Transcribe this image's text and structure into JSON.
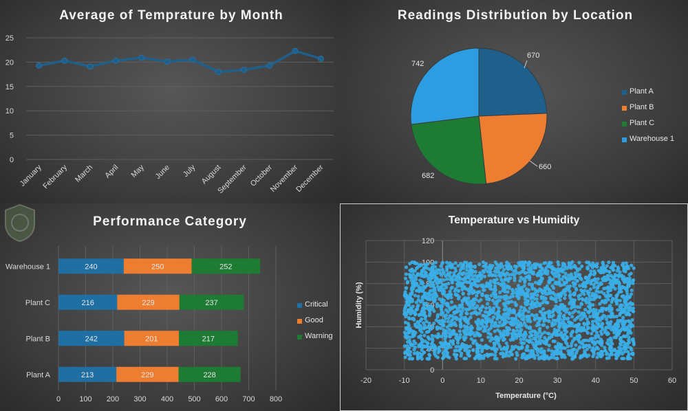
{
  "chart_data": [
    {
      "type": "line",
      "title": "Average of Temprature by Month",
      "categories": [
        "January",
        "February",
        "March",
        "April",
        "May",
        "June",
        "July",
        "August",
        "September",
        "October",
        "November",
        "December"
      ],
      "values": [
        19.3,
        20.3,
        19.1,
        20.3,
        20.9,
        20.1,
        20.5,
        18.0,
        18.4,
        19.3,
        22.3,
        20.7
      ],
      "ylim": [
        0,
        25
      ],
      "yticks": [
        "0",
        "5",
        "10",
        "15",
        "20",
        "25"
      ],
      "grid": true,
      "color": "#1f5f8b"
    },
    {
      "type": "pie",
      "title": "Readings Distribution by Location",
      "slices": [
        {
          "label": "Plant A",
          "value": 670,
          "value_label": "670",
          "color": "#1f5f8b"
        },
        {
          "label": "Plant B",
          "value": 660,
          "value_label": "660",
          "color": "#ed7d31"
        },
        {
          "label": "Plant C",
          "value": 682,
          "value_label": "682",
          "color": "#1e7b34"
        },
        {
          "label": "Warehouse 1",
          "value": 742,
          "value_label": "742",
          "color": "#2b9de0"
        }
      ],
      "legend": "right"
    },
    {
      "type": "bar",
      "orientation": "horizontal",
      "stacked": true,
      "title": "Performance Category",
      "categories": [
        "Warehouse 1",
        "Plant C",
        "Plant B",
        "Plant A"
      ],
      "series": [
        {
          "name": "Critical",
          "color": "#1f6fa3",
          "values": [
            240,
            216,
            242,
            213
          ],
          "labels": [
            "240",
            "216",
            "242",
            "213"
          ]
        },
        {
          "name": "Good",
          "color": "#ed7d31",
          "values": [
            250,
            229,
            201,
            229
          ],
          "labels": [
            "250",
            "229",
            "201",
            "229"
          ]
        },
        {
          "name": "Warning",
          "color": "#1e7b34",
          "values": [
            252,
            237,
            217,
            228
          ],
          "labels": [
            "252",
            "237",
            "217",
            "228"
          ]
        }
      ],
      "xlim": [
        0,
        800
      ],
      "xticks": [
        "0",
        "100",
        "200",
        "300",
        "400",
        "500",
        "600",
        "700",
        "800"
      ],
      "legend": "right"
    },
    {
      "type": "scatter",
      "title": "Temperature vs Humidity",
      "xlabel": "Temperature (°C)",
      "ylabel": "Humidity (%)",
      "xlim": [
        -20,
        60
      ],
      "ylim": [
        0,
        120
      ],
      "xticks": [
        "-20",
        "-10",
        "0",
        "10",
        "20",
        "30",
        "40",
        "50",
        "60"
      ],
      "yticks": [
        "0",
        "20",
        "40",
        "60",
        "80",
        "100",
        "120"
      ],
      "point_count": 2754,
      "x_range": [
        -10,
        50
      ],
      "y_range": [
        10,
        100
      ],
      "color": "#3aaee8",
      "grid": true
    }
  ]
}
